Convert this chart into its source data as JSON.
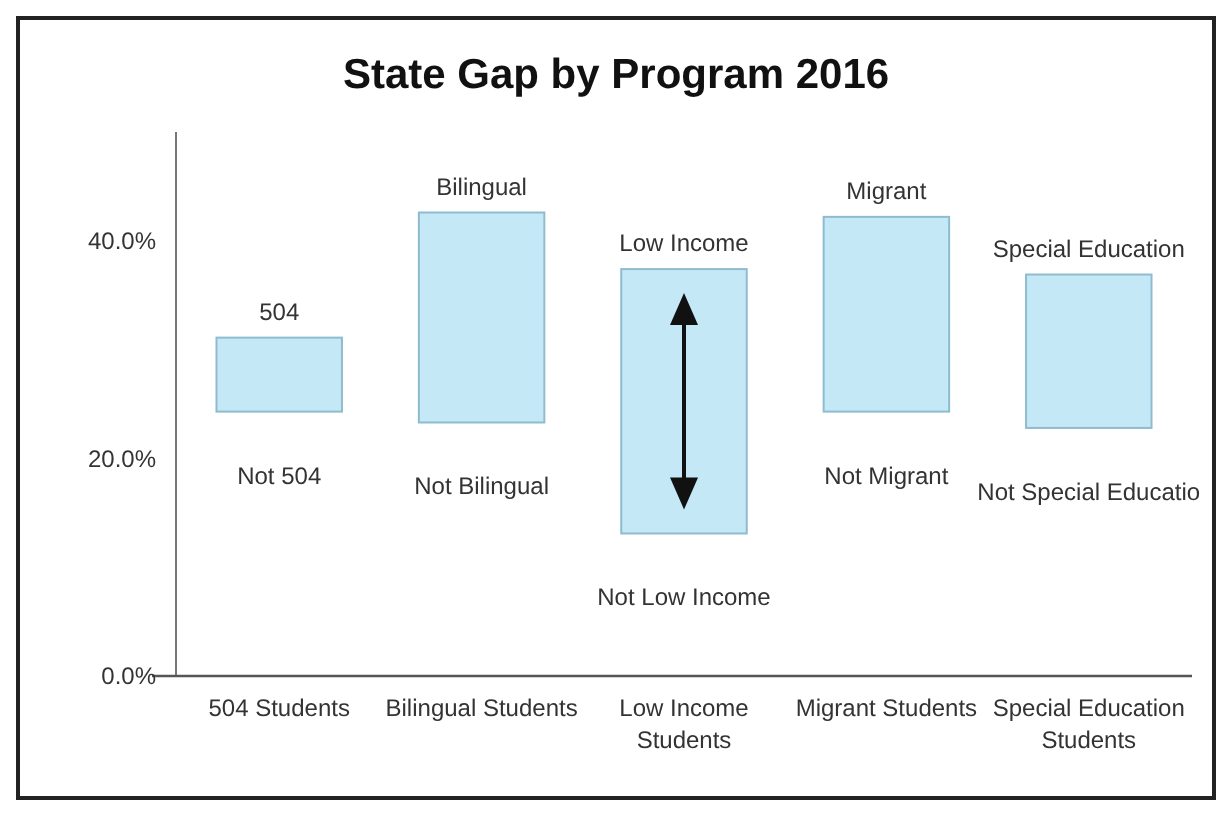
{
  "chart_data": {
    "type": "bar",
    "title": "State Gap by Program 2016",
    "categories": [
      "504 Students",
      "Bilingual Students",
      "Low Income Students",
      "Migrant Students",
      "Special Education Students"
    ],
    "base": [
      24.3,
      23.3,
      13.1,
      24.3,
      22.8
    ],
    "values": [
      6.8,
      19.3,
      24.3,
      17.9,
      14.1
    ],
    "color": "#c5e8f7",
    "ylim": [
      0,
      50
    ],
    "yticks": [
      {
        "value": 0,
        "label": "0.0%"
      },
      {
        "value": 20,
        "label": "20.0%"
      },
      {
        "value": 40,
        "label": "40.0%"
      }
    ],
    "annotations": [
      {
        "text": "504",
        "x": "504 Students",
        "y": 31.1
      },
      {
        "text": "Not 504",
        "x": "504 Students",
        "y": 24.3
      },
      {
        "text": "Bilingual",
        "x": "Bilingual Students",
        "y": 42.6
      },
      {
        "text": "Not Bilingual",
        "x": "Bilingual Students",
        "y": 23.3
      },
      {
        "text": "Low Income",
        "x": "Low Income Students",
        "y": 37.4
      },
      {
        "text": "Not Low Income",
        "x": "Low Income Students",
        "y": 13.1
      },
      {
        "text": "Migrant",
        "x": "Migrant Students",
        "y": 42.2
      },
      {
        "text": "Not Migrant",
        "x": "Migrant Students",
        "y": 24.3
      },
      {
        "text": "Special Education",
        "x": "Special Education Students",
        "y": 36.9
      },
      {
        "text": "Not Special Educatio",
        "x": "Special Education Students",
        "y": 22.8
      }
    ]
  }
}
